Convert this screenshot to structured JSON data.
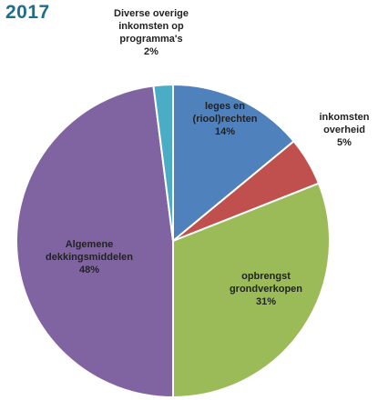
{
  "chart_data": {
    "type": "pie",
    "title": "2017",
    "categories": [
      "leges en (riool)rechten",
      "inkomsten overheid",
      "opbrengst grondverkopen",
      "Algemene dekkingsmiddelen",
      "Diverse overige inkomsten op programma's"
    ],
    "values": [
      14,
      5,
      31,
      48,
      2
    ],
    "value_labels": [
      "14%",
      "5%",
      "31%",
      "48%",
      "2%"
    ],
    "colors": [
      "#4f81bd",
      "#c0504d",
      "#9bbb59",
      "#8064a2",
      "#4bacc6"
    ]
  }
}
